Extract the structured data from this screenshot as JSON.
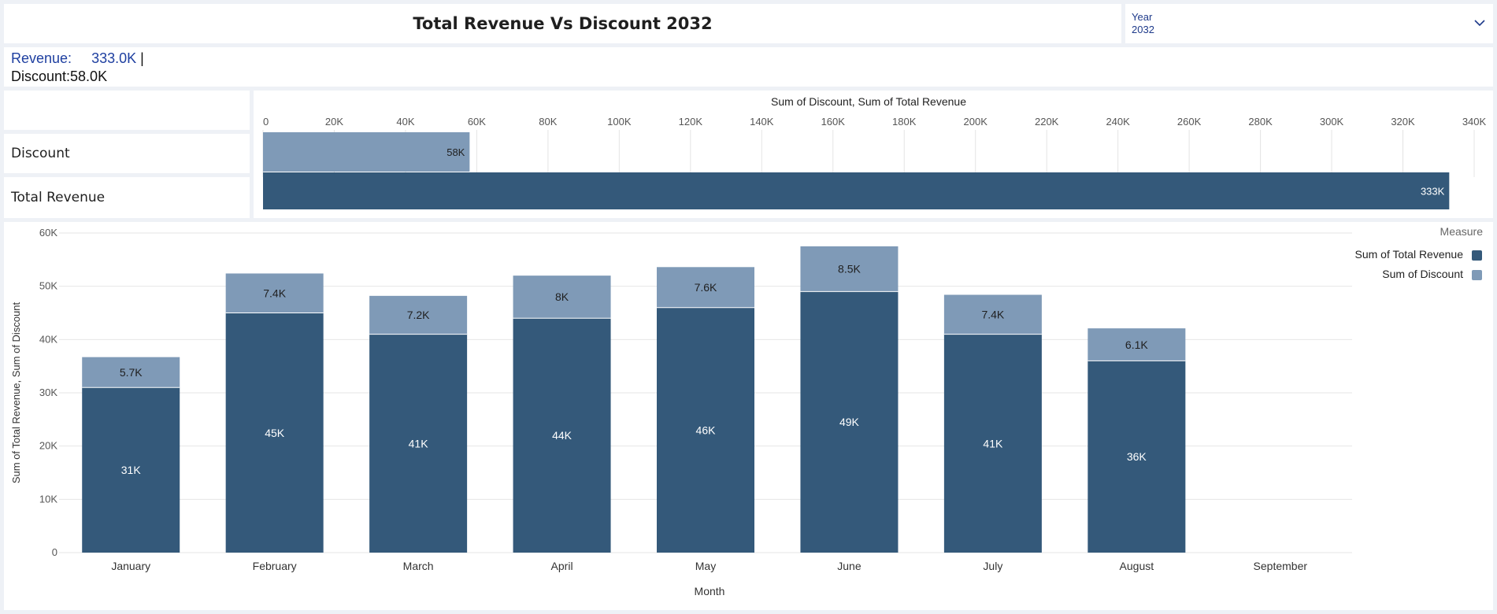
{
  "header": {
    "title": "Total Revenue Vs Discount 2032"
  },
  "year_filter": {
    "label": "Year",
    "value": "2032",
    "icon": "chevron-down-icon"
  },
  "kpi": {
    "revenue_label": "Revenue:",
    "revenue_value": "333.0K",
    "separator": "|",
    "discount_text": "Discount:58.0K"
  },
  "colors": {
    "revenue": "#34597a",
    "discount": "#7f9ab7",
    "text": "#1f1f1f",
    "accent_text": "#1e3fa0"
  },
  "chart_data": [
    {
      "type": "bar",
      "orientation": "horizontal",
      "title": "Sum of Discount, Sum of Total Revenue",
      "categories": [
        "Discount",
        "Total Revenue"
      ],
      "values": [
        58,
        333
      ],
      "data_labels": [
        "58K",
        "333K"
      ],
      "xlim": [
        0,
        340
      ],
      "x_ticks": [
        0,
        20,
        40,
        60,
        80,
        100,
        120,
        140,
        160,
        180,
        200,
        220,
        240,
        260,
        280,
        300,
        320,
        340
      ],
      "x_tick_labels": [
        "0",
        "20K",
        "40K",
        "60K",
        "80K",
        "100K",
        "120K",
        "140K",
        "160K",
        "180K",
        "200K",
        "220K",
        "240K",
        "260K",
        "280K",
        "300K",
        "320K",
        "340K"
      ],
      "grid": true
    },
    {
      "type": "bar",
      "stacked": true,
      "categories": [
        "January",
        "February",
        "March",
        "April",
        "May",
        "June",
        "July",
        "August",
        "September"
      ],
      "xlabel": "Month",
      "ylabel": "Sum of Total Revenue, Sum of Discount",
      "ylim": [
        0,
        60
      ],
      "y_ticks": [
        0,
        10,
        20,
        30,
        40,
        50,
        60
      ],
      "y_tick_labels": [
        "0",
        "10K",
        "20K",
        "30K",
        "40K",
        "50K",
        "60K"
      ],
      "legend_title": "Measure",
      "legend_position": "top-right",
      "grid": true,
      "series": [
        {
          "name": "Sum of Total Revenue",
          "values": [
            31,
            45,
            41,
            44,
            46,
            49,
            41,
            36,
            null
          ],
          "labels": [
            "31K",
            "45K",
            "41K",
            "44K",
            "46K",
            "49K",
            "41K",
            "36K",
            ""
          ]
        },
        {
          "name": "Sum of Discount",
          "values": [
            5.7,
            7.4,
            7.2,
            8,
            7.6,
            8.5,
            7.4,
            6.1,
            null
          ],
          "labels": [
            "5.7K",
            "7.4K",
            "7.2K",
            "8K",
            "7.6K",
            "8.5K",
            "7.4K",
            "6.1K",
            ""
          ]
        }
      ]
    }
  ]
}
